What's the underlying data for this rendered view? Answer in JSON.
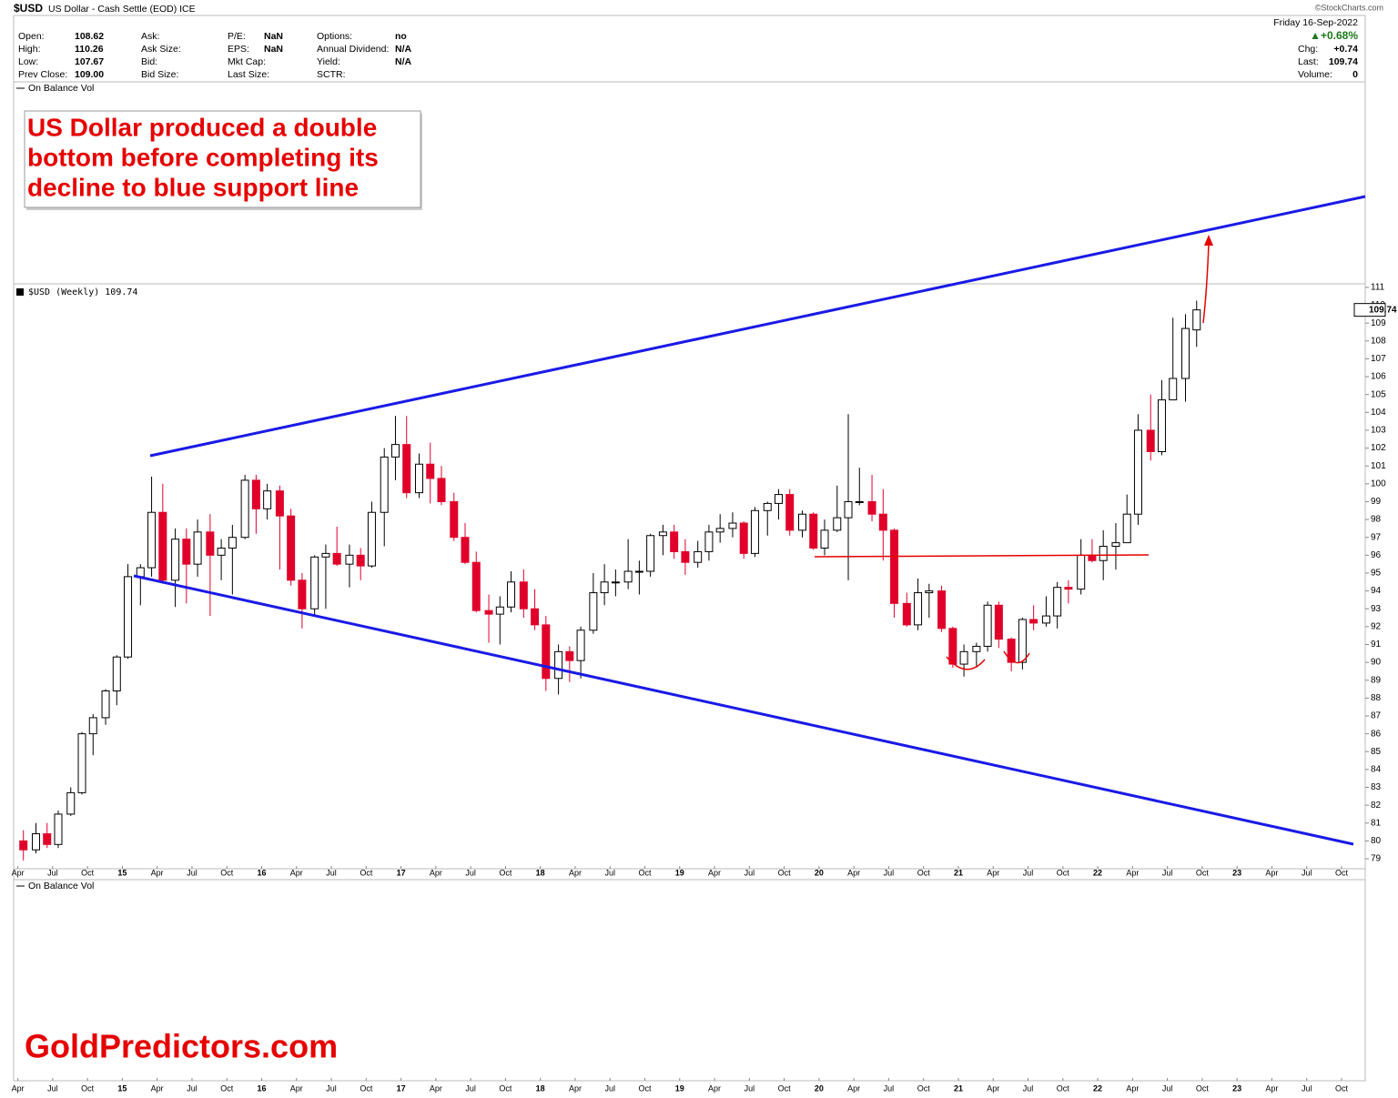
{
  "header": {
    "symbol": "$USD",
    "name": "US Dollar - Cash Settle (EOD) ICE",
    "source": "©StockCharts.com",
    "date": "Friday 16-Sep-2022",
    "change_pct": "▲+0.68%",
    "columns": [
      [
        {
          "label": "Open:",
          "value": "108.62"
        },
        {
          "label": "High:",
          "value": "110.26"
        },
        {
          "label": "Low:",
          "value": "107.67"
        },
        {
          "label": "Prev Close:",
          "value": "109.00"
        }
      ],
      [
        {
          "label": "Ask:"
        },
        {
          "label": "Ask Size:"
        },
        {
          "label": "Bid:"
        },
        {
          "label": "Bid Size:"
        }
      ],
      [
        {
          "label": "P/E:",
          "value": "NaN"
        },
        {
          "label": "EPS:",
          "value": "NaN"
        },
        {
          "label": "Mkt Cap:"
        },
        {
          "label": "Last Size:"
        }
      ],
      [
        {
          "label": "Options:",
          "value": "no"
        },
        {
          "label": "Annual Dividend:",
          "value": "N/A"
        },
        {
          "label": "Yield:",
          "value": "N/A"
        },
        {
          "label": "SCTR:"
        }
      ]
    ],
    "right": [
      {
        "label": "Chg:",
        "value": "+0.74"
      },
      {
        "label": "Last:",
        "value": "109.74"
      },
      {
        "label": "Volume:",
        "value": "0"
      }
    ]
  },
  "panels": {
    "top": "On Balance Vol",
    "main": "$USD (Weekly) 109.74",
    "bottom": "On Balance Vol"
  },
  "annotation": [
    "US Dollar produced a double",
    "bottom before completing its",
    "decline to blue support line"
  ],
  "watermark": "GoldPredictors.com",
  "chart_data": {
    "type": "candlestick",
    "up_color": "#000000",
    "down_color": "#e0002a",
    "xlim": [
      2014.22,
      2023.92
    ],
    "ylim": [
      78.44,
      111.2
    ],
    "xticks": [
      {
        "value": 2014.25,
        "label": "Apr"
      },
      {
        "value": 2014.5,
        "label": "Jul"
      },
      {
        "value": 2014.75,
        "label": "Oct"
      },
      {
        "value": 2015,
        "label": "15"
      },
      {
        "value": 2015.25,
        "label": "Apr"
      },
      {
        "value": 2015.5,
        "label": "Jul"
      },
      {
        "value": 2015.75,
        "label": "Oct"
      },
      {
        "value": 2016,
        "label": "16"
      },
      {
        "value": 2016.25,
        "label": "Apr"
      },
      {
        "value": 2016.5,
        "label": "Jul"
      },
      {
        "value": 2016.75,
        "label": "Oct"
      },
      {
        "value": 2017,
        "label": "17"
      },
      {
        "value": 2017.25,
        "label": "Apr"
      },
      {
        "value": 2017.5,
        "label": "Jul"
      },
      {
        "value": 2017.75,
        "label": "Oct"
      },
      {
        "value": 2018,
        "label": "18"
      },
      {
        "value": 2018.25,
        "label": "Apr"
      },
      {
        "value": 2018.5,
        "label": "Jul"
      },
      {
        "value": 2018.75,
        "label": "Oct"
      },
      {
        "value": 2019,
        "label": "19"
      },
      {
        "value": 2019.25,
        "label": "Apr"
      },
      {
        "value": 2019.5,
        "label": "Jul"
      },
      {
        "value": 2019.75,
        "label": "Oct"
      },
      {
        "value": 2020,
        "label": "20"
      },
      {
        "value": 2020.25,
        "label": "Apr"
      },
      {
        "value": 2020.5,
        "label": "Jul"
      },
      {
        "value": 2020.75,
        "label": "Oct"
      },
      {
        "value": 2021,
        "label": "21"
      },
      {
        "value": 2021.25,
        "label": "Apr"
      },
      {
        "value": 2021.5,
        "label": "Jul"
      },
      {
        "value": 2021.75,
        "label": "Oct"
      },
      {
        "value": 2022,
        "label": "22"
      },
      {
        "value": 2022.25,
        "label": "Apr"
      },
      {
        "value": 2022.5,
        "label": "Jul"
      },
      {
        "value": 2022.75,
        "label": "Oct"
      },
      {
        "value": 2023,
        "label": "23"
      },
      {
        "value": 2023.25,
        "label": "Apr"
      },
      {
        "value": 2023.5,
        "label": "Jul"
      },
      {
        "value": 2023.75,
        "label": "Oct"
      }
    ],
    "yticks": [
      79,
      80,
      81,
      82,
      83,
      84,
      85,
      86,
      87,
      88,
      89,
      90,
      91,
      92,
      93,
      94,
      95,
      96,
      97,
      98,
      99,
      100,
      101,
      102,
      103,
      104,
      105,
      106,
      107,
      108,
      109,
      110,
      111
    ],
    "x": [
      2014.29,
      2014.38,
      2014.46,
      2014.54,
      2014.63,
      2014.71,
      2014.79,
      2014.88,
      2014.96,
      2015.04,
      2015.13,
      2015.21,
      2015.29,
      2015.38,
      2015.46,
      2015.54,
      2015.63,
      2015.71,
      2015.79,
      2015.88,
      2015.96,
      2016.04,
      2016.13,
      2016.21,
      2016.29,
      2016.38,
      2016.46,
      2016.54,
      2016.63,
      2016.71,
      2016.79,
      2016.88,
      2016.96,
      2017.04,
      2017.13,
      2017.21,
      2017.29,
      2017.38,
      2017.46,
      2017.54,
      2017.63,
      2017.71,
      2017.79,
      2017.88,
      2017.96,
      2018.04,
      2018.13,
      2018.21,
      2018.29,
      2018.38,
      2018.46,
      2018.54,
      2018.63,
      2018.71,
      2018.79,
      2018.88,
      2018.96,
      2019.04,
      2019.13,
      2019.21,
      2019.29,
      2019.38,
      2019.46,
      2019.54,
      2019.63,
      2019.71,
      2019.79,
      2019.88,
      2019.96,
      2020.04,
      2020.13,
      2020.21,
      2020.29,
      2020.38,
      2020.46,
      2020.54,
      2020.63,
      2020.71,
      2020.79,
      2020.88,
      2020.96,
      2021.04,
      2021.13,
      2021.21,
      2021.29,
      2021.38,
      2021.46,
      2021.54,
      2021.63,
      2021.71,
      2021.79,
      2021.88,
      2021.96,
      2022.04,
      2022.13,
      2022.21,
      2022.29,
      2022.38,
      2022.46,
      2022.54,
      2022.63,
      2022.71
    ],
    "open": [
      80.0,
      79.5,
      80.4,
      79.8,
      81.5,
      82.7,
      86.0,
      86.9,
      88.4,
      90.3,
      94.8,
      95.3,
      98.4,
      94.6,
      96.9,
      95.5,
      97.3,
      96.0,
      96.4,
      97.0,
      100.2,
      98.6,
      99.6,
      98.2,
      94.6,
      93.0,
      95.9,
      96.1,
      95.5,
      96.0,
      95.4,
      98.4,
      101.5,
      102.2,
      99.5,
      101.1,
      100.3,
      99.0,
      97.0,
      95.6,
      92.9,
      92.7,
      93.1,
      94.5,
      93.0,
      92.1,
      89.1,
      90.6,
      90.1,
      91.8,
      93.9,
      94.5,
      94.5,
      95.1,
      95.1,
      97.1,
      97.3,
      96.2,
      95.6,
      96.2,
      97.3,
      97.5,
      97.8,
      96.1,
      98.5,
      98.9,
      99.4,
      97.4,
      98.3,
      96.4,
      97.4,
      98.1,
      99.0,
      99.0,
      98.3,
      97.4,
      93.3,
      92.1,
      93.9,
      94.0,
      91.9,
      89.9,
      90.6,
      90.9,
      93.2,
      91.3,
      90.0,
      92.4,
      92.2,
      92.6,
      94.2,
      94.1,
      96.0,
      95.7,
      96.5,
      96.7,
      98.3,
      103.0,
      101.8,
      104.7,
      105.9,
      108.62
    ],
    "high": [
      80.6,
      81.0,
      81.0,
      81.7,
      83.0,
      86.1,
      87.1,
      88.5,
      90.4,
      95.5,
      95.5,
      100.4,
      100.0,
      97.5,
      97.5,
      98.0,
      98.3,
      96.9,
      97.7,
      100.5,
      100.5,
      100.0,
      99.9,
      98.6,
      95.0,
      96.0,
      96.6,
      97.6,
      96.6,
      96.4,
      99.0,
      102.0,
      103.8,
      103.8,
      101.7,
      102.3,
      101.0,
      99.5,
      97.8,
      96.2,
      93.8,
      93.7,
      95.1,
      95.2,
      94.1,
      92.6,
      91.0,
      90.9,
      92.0,
      95.0,
      95.5,
      95.2,
      96.9,
      95.7,
      97.2,
      97.7,
      97.7,
      96.9,
      96.8,
      97.7,
      98.3,
      98.4,
      97.9,
      98.7,
      99.0,
      99.7,
      99.7,
      98.5,
      98.4,
      98.0,
      99.9,
      103.9,
      100.9,
      100.5,
      99.7,
      97.5,
      93.9,
      94.7,
      94.4,
      94.3,
      92.0,
      91.0,
      91.1,
      93.4,
      93.4,
      91.4,
      92.5,
      93.2,
      93.7,
      94.5,
      94.6,
      96.9,
      96.9,
      97.4,
      97.8,
      99.4,
      103.9,
      105.0,
      105.8,
      109.3,
      109.5,
      110.26
    ],
    "low": [
      78.9,
      79.3,
      79.6,
      79.6,
      81.4,
      82.6,
      84.8,
      86.5,
      87.6,
      90.2,
      93.2,
      94.8,
      94.4,
      93.1,
      93.3,
      94.8,
      92.6,
      94.6,
      93.8,
      96.9,
      97.2,
      98.0,
      95.2,
      94.3,
      91.9,
      92.6,
      93.0,
      95.4,
      94.2,
      94.6,
      95.3,
      96.5,
      100.2,
      99.2,
      99.2,
      98.9,
      98.8,
      96.8,
      95.5,
      92.8,
      91.1,
      91.0,
      92.8,
      92.5,
      91.8,
      88.4,
      88.2,
      88.9,
      89.1,
      91.6,
      93.2,
      93.7,
      94.1,
      93.8,
      94.8,
      96.0,
      95.8,
      94.9,
      95.3,
      95.7,
      96.7,
      97.0,
      95.8,
      95.9,
      97.1,
      98.0,
      97.1,
      97.0,
      96.3,
      96.0,
      97.3,
      94.6,
      98.8,
      97.9,
      95.7,
      92.5,
      92.0,
      91.8,
      92.5,
      91.7,
      89.7,
      89.2,
      89.7,
      90.6,
      90.8,
      89.5,
      89.6,
      91.8,
      92.0,
      91.9,
      93.3,
      93.8,
      95.6,
      94.6,
      95.2,
      96.7,
      97.7,
      101.3,
      101.6,
      104.7,
      104.6,
      107.67
    ],
    "close": [
      79.5,
      80.4,
      79.8,
      81.5,
      82.7,
      86.0,
      86.9,
      88.4,
      90.3,
      94.8,
      95.3,
      98.4,
      94.6,
      96.9,
      95.5,
      97.3,
      96.0,
      96.4,
      97.0,
      100.2,
      98.6,
      99.6,
      98.2,
      94.6,
      93.0,
      95.9,
      96.1,
      95.5,
      96.0,
      95.4,
      98.4,
      101.5,
      102.2,
      99.5,
      101.1,
      100.3,
      99.0,
      97.0,
      95.6,
      92.9,
      92.7,
      93.1,
      94.5,
      93.0,
      92.1,
      89.1,
      90.6,
      90.1,
      91.8,
      93.9,
      94.5,
      94.5,
      95.1,
      95.1,
      97.1,
      97.3,
      96.2,
      95.6,
      96.2,
      97.3,
      97.5,
      97.8,
      96.1,
      98.5,
      98.9,
      99.4,
      97.4,
      98.3,
      96.4,
      97.4,
      98.1,
      99.0,
      99.0,
      98.3,
      97.4,
      93.3,
      92.1,
      93.9,
      94.0,
      91.9,
      89.9,
      90.6,
      90.9,
      93.2,
      91.3,
      90.0,
      92.4,
      92.2,
      92.6,
      94.2,
      94.1,
      96.0,
      95.7,
      96.5,
      96.7,
      98.3,
      103.0,
      101.8,
      104.7,
      105.9,
      108.7,
      109.74
    ]
  }
}
